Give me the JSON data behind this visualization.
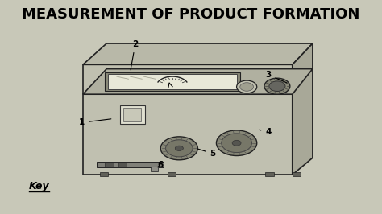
{
  "title": "MEASUREMENT OF PRODUCT FORMATION",
  "background_color": "#c8c8b8",
  "title_fontsize": 13,
  "title_fontweight": "bold",
  "key_text": "Key"
}
